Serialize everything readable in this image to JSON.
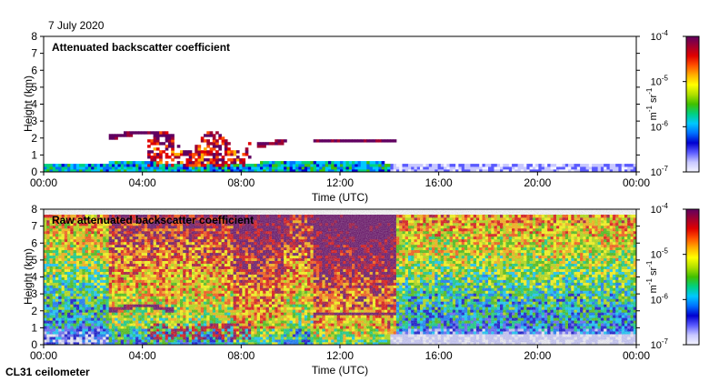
{
  "date": "7 July 2020",
  "instrument": "CL31 ceilometer",
  "colormap": [
    "#f4f4ff",
    "#c8c8ff",
    "#5a5aff",
    "#0000d0",
    "#0070ff",
    "#00c8ff",
    "#00d080",
    "#40c000",
    "#b0e000",
    "#ffff00",
    "#ffb000",
    "#ff5000",
    "#e00000",
    "#a00030",
    "#600060"
  ],
  "chart_data": [
    {
      "type": "heatmap",
      "title": "Attenuated backscatter coefficient",
      "xlabel": "Time (UTC)",
      "ylabel": "Height (km)",
      "xlim": [
        0,
        24
      ],
      "ylim": [
        0,
        8
      ],
      "xticks": [
        "00:00",
        "04:00",
        "08:00",
        "12:00",
        "16:00",
        "20:00",
        "00:00"
      ],
      "yticks": [
        "0",
        "1",
        "2",
        "3",
        "4",
        "5",
        "6",
        "7",
        "8"
      ],
      "colorbar": {
        "label_base": "m",
        "label_exp1": "-1",
        "label_mid": "sr",
        "label_exp2": "-1",
        "ticks": [
          {
            "base": "10",
            "exp": "-4"
          },
          {
            "base": "10",
            "exp": "-5"
          },
          {
            "base": "10",
            "exp": "-6"
          },
          {
            "base": "10",
            "exp": "-7"
          }
        ]
      },
      "features": [
        {
          "name": "boundary layer",
          "t_start": 0.0,
          "t_end": 24.0,
          "height_top_km": 0.5,
          "log10_value": -6.2
        },
        {
          "name": "cloud layer",
          "t_start": 2.6,
          "t_end": 5.2,
          "height_km": 2.1,
          "log10_value": -4.2
        },
        {
          "name": "convective clouds",
          "t_start": 4.2,
          "t_end": 8.4,
          "height_km": 1.2,
          "log10_value": -4.6
        },
        {
          "name": "cloud layer",
          "t_start": 8.6,
          "t_end": 9.8,
          "height_km": 1.7,
          "log10_value": -4.2
        },
        {
          "name": "cloud layer",
          "t_start": 10.9,
          "t_end": 14.2,
          "height_km": 1.8,
          "log10_value": -4.3
        }
      ]
    },
    {
      "type": "heatmap",
      "title": "Raw attenuated backscatter coefficient",
      "xlabel": "Time (UTC)",
      "ylabel": "Height (km)",
      "xlim": [
        0,
        24
      ],
      "ylim": [
        0,
        8
      ],
      "xticks": [
        "00:00",
        "04:00",
        "08:00",
        "12:00",
        "16:00",
        "20:00",
        "00:00"
      ],
      "yticks": [
        "0",
        "1",
        "2",
        "3",
        "4",
        "5",
        "6",
        "7",
        "8"
      ],
      "colorbar": {
        "label_base": "m",
        "label_exp1": "-1",
        "label_mid": "sr",
        "label_exp2": "-1",
        "ticks": [
          {
            "base": "10",
            "exp": "-4"
          },
          {
            "base": "10",
            "exp": "-5"
          },
          {
            "base": "10",
            "exp": "-6"
          },
          {
            "base": "10",
            "exp": "-7"
          }
        ]
      },
      "features": [
        {
          "name": "noisy daytime background",
          "t_start": 2.6,
          "t_end": 14.2,
          "log10_value": -5.0
        },
        {
          "name": "high noise period",
          "t_start": 10.9,
          "t_end": 14.2,
          "log10_value": -4.5
        },
        {
          "name": "cloud layer",
          "t_start": 2.6,
          "t_end": 5.2,
          "height_km": 2.1,
          "log10_value": -4.2
        },
        {
          "name": "cloud layer",
          "t_start": 10.9,
          "t_end": 14.2,
          "height_km": 1.8,
          "log10_value": -4.3
        }
      ]
    }
  ]
}
